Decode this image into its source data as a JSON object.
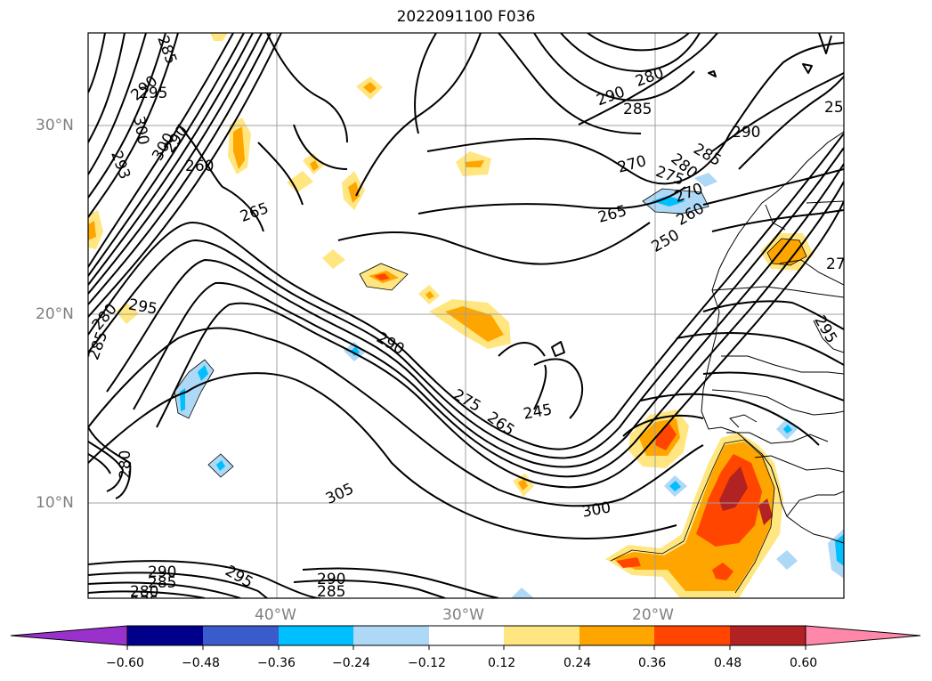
{
  "title": "2022091100 F036",
  "lat_labels": [
    "30°N",
    "20°N",
    "10°N"
  ],
  "lon_labels": [
    "40°W",
    "30°W",
    "20°W"
  ],
  "contour_labels": [
    "285",
    "290",
    "295",
    "300",
    "293",
    "300",
    "290",
    "260",
    "265",
    "280",
    "290",
    "285",
    "270",
    "275",
    "280",
    "285",
    "290",
    "270",
    "265",
    "260",
    "250",
    "27",
    "25",
    "295",
    "280",
    "285",
    "290",
    "275",
    "265",
    "245",
    "300",
    "305",
    "290",
    "295",
    "290",
    "285",
    "285",
    "280",
    "275",
    "295",
    "280"
  ],
  "colorbar": {
    "ticks": [
      "−0.60",
      "−0.48",
      "−0.36",
      "−0.24",
      "−0.12",
      "0.12",
      "0.24",
      "0.36",
      "0.48",
      "0.60"
    ],
    "colors": [
      "#9932cc",
      "#00008b",
      "#3a5bcc",
      "#00bfff",
      "#add8f6",
      "#ffffff",
      "#ffe680",
      "#ffa500",
      "#ff4500",
      "#b22222",
      "#ff88aa"
    ]
  }
}
